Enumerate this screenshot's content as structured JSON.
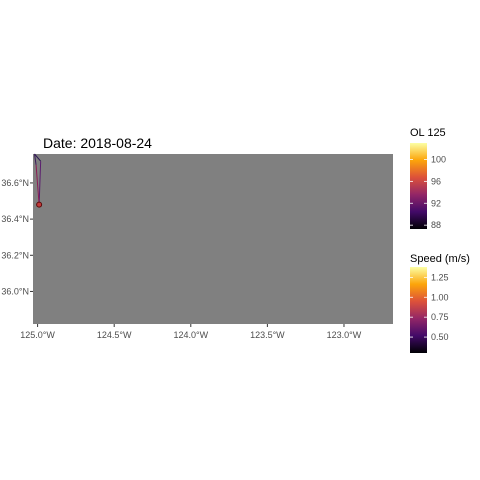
{
  "title": "Date: 2018-08-24",
  "map": {
    "background_color": "#808080",
    "xlim": [
      -125.03,
      -122.68
    ],
    "ylim": [
      35.82,
      36.76
    ],
    "x_ticks": [
      {
        "value": -125.0,
        "label": "125.0°W"
      },
      {
        "value": -124.5,
        "label": "124.5°W"
      },
      {
        "value": -124.0,
        "label": "124.0°W"
      },
      {
        "value": -123.5,
        "label": "123.5°W"
      },
      {
        "value": -123.0,
        "label": "123.0°W"
      }
    ],
    "y_ticks": [
      {
        "value": 36.6,
        "label": "36.6°N"
      },
      {
        "value": 36.4,
        "label": "36.4°N"
      },
      {
        "value": 36.2,
        "label": "36.2°N"
      },
      {
        "value": 36.0,
        "label": "36.0°N"
      }
    ],
    "track": [
      {
        "lon": -125.02,
        "lat": 36.76,
        "color": "#2a1650"
      },
      {
        "lon": -124.98,
        "lat": 36.72,
        "color": "#5b1e6e"
      },
      {
        "lon": -124.99,
        "lat": 36.48,
        "color": "#8b1a54"
      },
      {
        "lon": -125.01,
        "lat": 36.7,
        "color": "#3a1a5a"
      },
      {
        "lon": -125.02,
        "lat": 36.76,
        "color": "#1a0c2e"
      }
    ],
    "marker": {
      "lon": -124.99,
      "lat": 36.48,
      "fill": "#c23a3a",
      "stroke": "#5a0a0a"
    }
  },
  "legends": [
    {
      "title": "OL 125",
      "ticks": [
        {
          "value": 100,
          "label": "100"
        },
        {
          "value": 96,
          "label": "96"
        },
        {
          "value": 92,
          "label": "92"
        },
        {
          "value": 88,
          "label": "88"
        }
      ],
      "range": [
        87.3,
        103.0
      ],
      "colors": [
        "#000004",
        "#420a68",
        "#932667",
        "#dd513a",
        "#fca50a",
        "#fcffa4"
      ]
    },
    {
      "title": "Speed (m/s)",
      "ticks": [
        {
          "value": 1.25,
          "label": "1.25"
        },
        {
          "value": 1.0,
          "label": "1.00"
        },
        {
          "value": 0.75,
          "label": "0.75"
        },
        {
          "value": 0.5,
          "label": "0.50"
        }
      ],
      "range": [
        0.3,
        1.38
      ],
      "colors": [
        "#000004",
        "#420a68",
        "#932667",
        "#dd513a",
        "#fca50a",
        "#fcffa4"
      ]
    }
  ]
}
